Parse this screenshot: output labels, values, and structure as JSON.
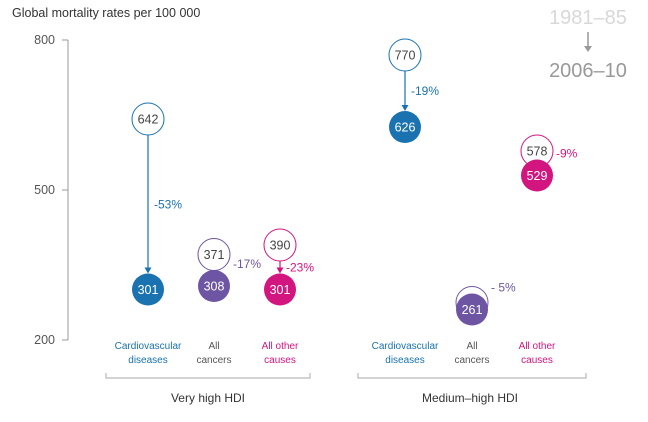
{
  "chart_data": {
    "type": "scatter",
    "title": "Global mortality rates per 100 000",
    "ylim": [
      200,
      800
    ],
    "yticks": [
      "800",
      "500",
      "200"
    ],
    "ytick_values": [
      800,
      500,
      200
    ],
    "legend": {
      "start": "1981–85",
      "end": "2006–10",
      "placement": "top-right"
    },
    "colors": {
      "cardiovascular": "#1a72b0",
      "cancers": "#6e55a3",
      "other": "#d3157f",
      "axis": "#999999",
      "legend_start": "#d8d8d8",
      "legend_end": "#999999"
    },
    "groups": [
      {
        "name": "Very high HDI",
        "series": [
          {
            "key": "cardiovascular",
            "label": [
              "Cardiovascular",
              "diseases"
            ],
            "start": 642,
            "end": 301,
            "change": "-53%",
            "start_label": "642",
            "end_label": "301"
          },
          {
            "key": "cancers",
            "label": [
              "All",
              "cancers"
            ],
            "start": 371,
            "end": 308,
            "change": "-17%",
            "start_label": "371",
            "end_label": "308"
          },
          {
            "key": "other",
            "label": [
              "All other",
              "causes"
            ],
            "start": 390,
            "end": 301,
            "change": "-23%",
            "start_label": "390",
            "end_label": "301"
          }
        ]
      },
      {
        "name": "Medium–high HDI",
        "series": [
          {
            "key": "cardiovascular",
            "label": [
              "Cardiovascular",
              "diseases"
            ],
            "start": 770,
            "end": 626,
            "change": "-19%",
            "start_label": "770",
            "end_label": "626"
          },
          {
            "key": "cancers",
            "label": [
              "All",
              "cancers"
            ],
            "start": 275,
            "end": 261,
            "change": "- 5%",
            "start_label": "",
            "end_label": "261"
          },
          {
            "key": "other",
            "label": [
              "All other",
              "causes"
            ],
            "start": 578,
            "end": 529,
            "change": "-9%",
            "start_label": "578",
            "end_label": "529"
          }
        ]
      }
    ]
  }
}
